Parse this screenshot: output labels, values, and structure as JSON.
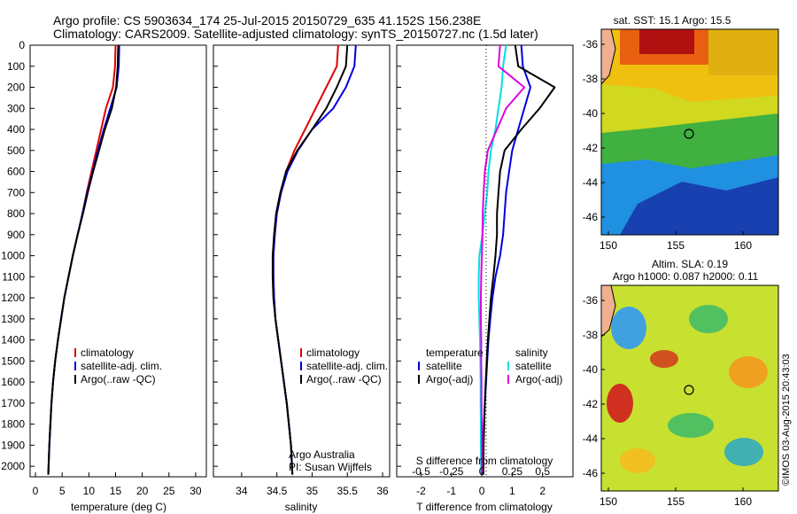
{
  "header": {
    "line1": "Argo profile: CS 5903634_174 25-Jul-2015 20150729_635 41.152S 156.238E",
    "line2": "Climatology: CARS2009. Satellite-adjusted climatology: synTS_20150727.nc (1.5d later)"
  },
  "credit": "©IMOS 03-Aug-2015 20:43:03",
  "colors": {
    "climatology": "#e00000",
    "satellite": "#0000e0",
    "argo": "#000000",
    "s_satellite": "#00e0e0",
    "s_argo": "#e000e0",
    "frame": "#000000"
  },
  "depth_axis": {
    "ylim": [
      0,
      2050
    ],
    "ticks": [
      0,
      100,
      200,
      300,
      400,
      500,
      600,
      700,
      800,
      900,
      1000,
      1100,
      1200,
      1300,
      1400,
      1500,
      1600,
      1700,
      1800,
      1900,
      2000
    ]
  },
  "legend": {
    "climatology": "climatology",
    "satellite": "satellite-adj. clim.",
    "argo": "Argo(..raw -QC)"
  },
  "salinity_note": {
    "line1": "Argo Australia",
    "line2": "PI: Susan Wijffels"
  },
  "diff_legend": {
    "t_heading": "temperature",
    "s_heading": "salinity",
    "t_satellite": "satellite",
    "t_argo": "Argo(-adj)",
    "s_satellite": "satellite",
    "s_argo": "Argo(-adj)"
  },
  "map_sst": {
    "title": "sat. SST: 15.1  Argo: 15.5",
    "xticks": [
      "150",
      "155",
      "160"
    ],
    "yticks": [
      "-36",
      "-38",
      "-40",
      "-42",
      "-44",
      "-46"
    ]
  },
  "map_sla": {
    "title1": "Altim. SLA: 0.19",
    "title2": "Argo h1000: 0.087 h2000: 0.11",
    "xticks": [
      "150",
      "155",
      "160"
    ],
    "yticks": [
      "-36",
      "-38",
      "-40",
      "-42",
      "-44",
      "-46"
    ]
  },
  "chart_data": [
    {
      "type": "line",
      "name": "temperature",
      "xlabel": "temperature (deg C)",
      "ylabel": "",
      "xlim": [
        -1,
        32
      ],
      "ylim": [
        2050,
        0
      ],
      "xticks": [
        0,
        5,
        10,
        15,
        20,
        25,
        30
      ],
      "series": [
        {
          "name": "climatology",
          "x": [
            15.0,
            14.9,
            14.5,
            13.2,
            12.3,
            11.4,
            10.5,
            9.6,
            8.8,
            7.9,
            7.0,
            6.2,
            5.4,
            4.8,
            4.2,
            3.7,
            3.3,
            3.0,
            2.8,
            2.6,
            2.4
          ],
          "y": [
            0,
            100,
            200,
            300,
            400,
            500,
            600,
            700,
            800,
            900,
            1000,
            1100,
            1200,
            1300,
            1400,
            1500,
            1600,
            1700,
            1800,
            1900,
            2040
          ]
        },
        {
          "name": "satellite-adj. clim.",
          "x": [
            15.7,
            15.6,
            15.2,
            14.0,
            12.8,
            11.7,
            10.7,
            9.7,
            8.8,
            7.9,
            7.0,
            6.2,
            5.4,
            4.8,
            4.2,
            3.7,
            3.3,
            3.0,
            2.8,
            2.6,
            2.4
          ],
          "y": [
            0,
            100,
            200,
            300,
            400,
            500,
            600,
            700,
            800,
            900,
            1000,
            1100,
            1200,
            1300,
            1400,
            1500,
            1600,
            1700,
            1800,
            1900,
            2040
          ]
        },
        {
          "name": "Argo(..raw -QC)",
          "x": [
            15.5,
            15.4,
            15.1,
            14.3,
            13.0,
            11.9,
            10.8,
            9.8,
            8.9,
            7.9,
            7.0,
            6.2,
            5.4,
            4.8,
            4.2,
            3.7,
            3.3,
            3.0,
            2.8,
            2.6,
            2.4
          ],
          "y": [
            0,
            100,
            200,
            300,
            400,
            500,
            600,
            700,
            800,
            900,
            1000,
            1100,
            1200,
            1300,
            1400,
            1500,
            1600,
            1700,
            1800,
            1900,
            2040
          ]
        }
      ]
    },
    {
      "type": "line",
      "name": "salinity",
      "xlabel": "salinity",
      "ylabel": "",
      "xlim": [
        33.6,
        36.1
      ],
      "ylim": [
        2050,
        0
      ],
      "xticks": [
        34,
        34.5,
        35,
        35.5,
        36
      ],
      "series": [
        {
          "name": "climatology",
          "x": [
            35.37,
            35.35,
            35.2,
            35.05,
            34.9,
            34.75,
            34.63,
            34.56,
            34.5,
            34.47,
            34.45,
            34.45,
            34.46,
            34.48,
            34.52,
            34.56,
            34.6,
            34.64,
            34.67,
            34.7,
            34.72
          ],
          "y": [
            0,
            100,
            200,
            300,
            400,
            500,
            600,
            700,
            800,
            900,
            1000,
            1100,
            1200,
            1300,
            1400,
            1500,
            1600,
            1700,
            1800,
            1900,
            2040
          ]
        },
        {
          "name": "satellite-adj. clim.",
          "x": [
            35.62,
            35.6,
            35.48,
            35.3,
            35.0,
            34.8,
            34.65,
            34.56,
            34.5,
            34.47,
            34.45,
            34.45,
            34.46,
            34.48,
            34.52,
            34.56,
            34.6,
            34.64,
            34.67,
            34.7,
            34.72
          ],
          "y": [
            0,
            100,
            200,
            300,
            400,
            500,
            600,
            700,
            800,
            900,
            1000,
            1100,
            1200,
            1300,
            1400,
            1500,
            1600,
            1700,
            1800,
            1900,
            2040
          ]
        },
        {
          "name": "Argo(..raw -QC)",
          "x": [
            35.5,
            35.48,
            35.35,
            35.2,
            35.0,
            34.79,
            34.63,
            34.55,
            34.49,
            34.46,
            34.44,
            34.44,
            34.45,
            34.48,
            34.52,
            34.56,
            34.6,
            34.64,
            34.67,
            34.7,
            34.72
          ],
          "y": [
            0,
            100,
            200,
            300,
            400,
            500,
            600,
            700,
            800,
            900,
            1000,
            1100,
            1200,
            1300,
            1400,
            1500,
            1600,
            1700,
            1800,
            1900,
            2040
          ]
        }
      ]
    },
    {
      "type": "line",
      "name": "difference",
      "xlabel": "T difference from climatology",
      "ylabel": "",
      "xlim": [
        -2.8,
        3.0
      ],
      "ylim": [
        2050,
        0
      ],
      "xticks": [
        -2,
        -1,
        0,
        1,
        2
      ],
      "secondary_xlabel": "S difference from climatology",
      "secondary_xticks": [
        "-0.5",
        "-0.25",
        "0",
        "0.25",
        "0.5"
      ],
      "series": [
        {
          "name": "temperature satellite",
          "x": [
            1.3,
            1.35,
            1.6,
            1.4,
            1.2,
            1.0,
            0.9,
            0.8,
            0.75,
            0.7,
            0.6,
            0.45,
            0.35,
            0.28,
            0.22,
            0.18,
            0.14,
            0.1,
            0.07,
            0.04,
            0.02
          ],
          "y": [
            0,
            100,
            200,
            300,
            400,
            500,
            600,
            700,
            800,
            900,
            1000,
            1100,
            1200,
            1300,
            1400,
            1500,
            1600,
            1700,
            1800,
            1900,
            2040
          ]
        },
        {
          "name": "temperature Argo(-adj)",
          "x": [
            1.1,
            1.2,
            2.4,
            1.9,
            1.3,
            0.75,
            0.6,
            0.55,
            0.5,
            0.5,
            0.45,
            0.38,
            0.3,
            0.25,
            0.2,
            0.16,
            0.13,
            0.1,
            0.08,
            0.06,
            0.05
          ],
          "y": [
            0,
            100,
            200,
            300,
            400,
            500,
            600,
            700,
            800,
            900,
            1000,
            1100,
            1200,
            1300,
            1400,
            1500,
            1600,
            1700,
            1800,
            1900,
            2040
          ]
        },
        {
          "name": "salinity satellite",
          "x": [
            0.8,
            0.7,
            0.65,
            0.55,
            0.45,
            0.3,
            0.22,
            0.18,
            0.1,
            0.02,
            -0.08,
            -0.1,
            -0.1,
            -0.08,
            -0.06,
            -0.05,
            -0.04,
            -0.04,
            -0.03,
            -0.03,
            -0.02
          ],
          "y": [
            0,
            100,
            200,
            300,
            400,
            500,
            600,
            700,
            800,
            900,
            1000,
            1100,
            1200,
            1300,
            1400,
            1500,
            1600,
            1700,
            1800,
            1900,
            2040
          ]
        },
        {
          "name": "salinity Argo(-adj)",
          "x": [
            0.6,
            0.55,
            1.4,
            0.8,
            0.5,
            0.2,
            0.1,
            0.06,
            0.03,
            0.02,
            0.0,
            -0.02,
            -0.03,
            -0.03,
            -0.02,
            -0.02,
            -0.01,
            -0.01,
            0.0,
            0.0,
            0.0
          ],
          "y": [
            0,
            100,
            200,
            300,
            400,
            500,
            600,
            700,
            800,
            900,
            1000,
            1100,
            1200,
            1300,
            1400,
            1500,
            1600,
            1700,
            1800,
            1900,
            2040
          ]
        }
      ]
    }
  ]
}
